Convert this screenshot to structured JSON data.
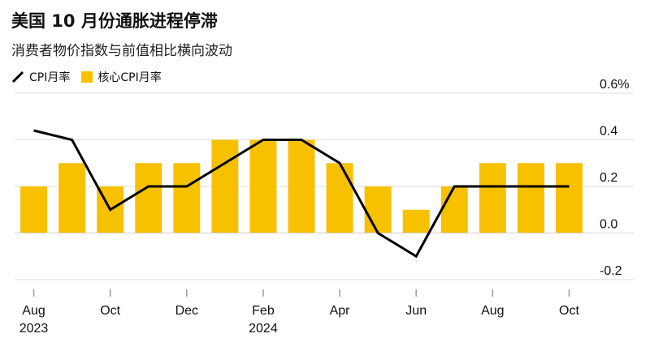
{
  "title": "美国 10 月份通胀进程停滞",
  "subtitle": "消费者物价指数与前值相比横向波动",
  "colors": {
    "core": "#F7C100",
    "cpi": "#000000",
    "axis": "#999999",
    "grid": "#dddddd"
  },
  "chart_data": {
    "type": "bar",
    "categories": [
      "2023-08",
      "2023-09",
      "2023-10",
      "2023-11",
      "2023-12",
      "2024-01",
      "2024-02",
      "2024-03",
      "2024-04",
      "2024-05",
      "2024-06",
      "2024-07",
      "2024-08",
      "2024-09",
      "2024-10"
    ],
    "series": [
      {
        "name": "CPI月率",
        "type": "line",
        "values": [
          0.44,
          0.4,
          0.1,
          0.2,
          0.2,
          0.3,
          0.4,
          0.4,
          0.3,
          0.0,
          -0.1,
          0.2,
          0.2,
          0.2,
          0.2
        ]
      },
      {
        "name": "核心CPI月率",
        "type": "bar",
        "values": [
          0.2,
          0.3,
          0.2,
          0.3,
          0.3,
          0.4,
          0.4,
          0.4,
          0.3,
          0.2,
          0.1,
          0.2,
          0.3,
          0.3,
          0.3
        ]
      }
    ],
    "ylim": [
      -0.2,
      0.6
    ],
    "yticks": [
      "-0.2",
      "0.0",
      "0.2",
      "0.4",
      "0.6%"
    ],
    "ytick_values": [
      -0.2,
      0.0,
      0.2,
      0.4,
      0.6
    ],
    "xticks": [
      {
        "category": "2023-08",
        "label": "Aug",
        "sub": "2023"
      },
      {
        "category": "2023-10",
        "label": "Oct",
        "sub": ""
      },
      {
        "category": "2023-12",
        "label": "Dec",
        "sub": ""
      },
      {
        "category": "2024-02",
        "label": "Feb",
        "sub": "2024"
      },
      {
        "category": "2024-04",
        "label": "Apr",
        "sub": ""
      },
      {
        "category": "2024-06",
        "label": "Jun",
        "sub": ""
      },
      {
        "category": "2024-08",
        "label": "Aug",
        "sub": ""
      },
      {
        "category": "2024-10",
        "label": "Oct",
        "sub": ""
      }
    ],
    "grid": true,
    "legend_position": "top-left"
  }
}
